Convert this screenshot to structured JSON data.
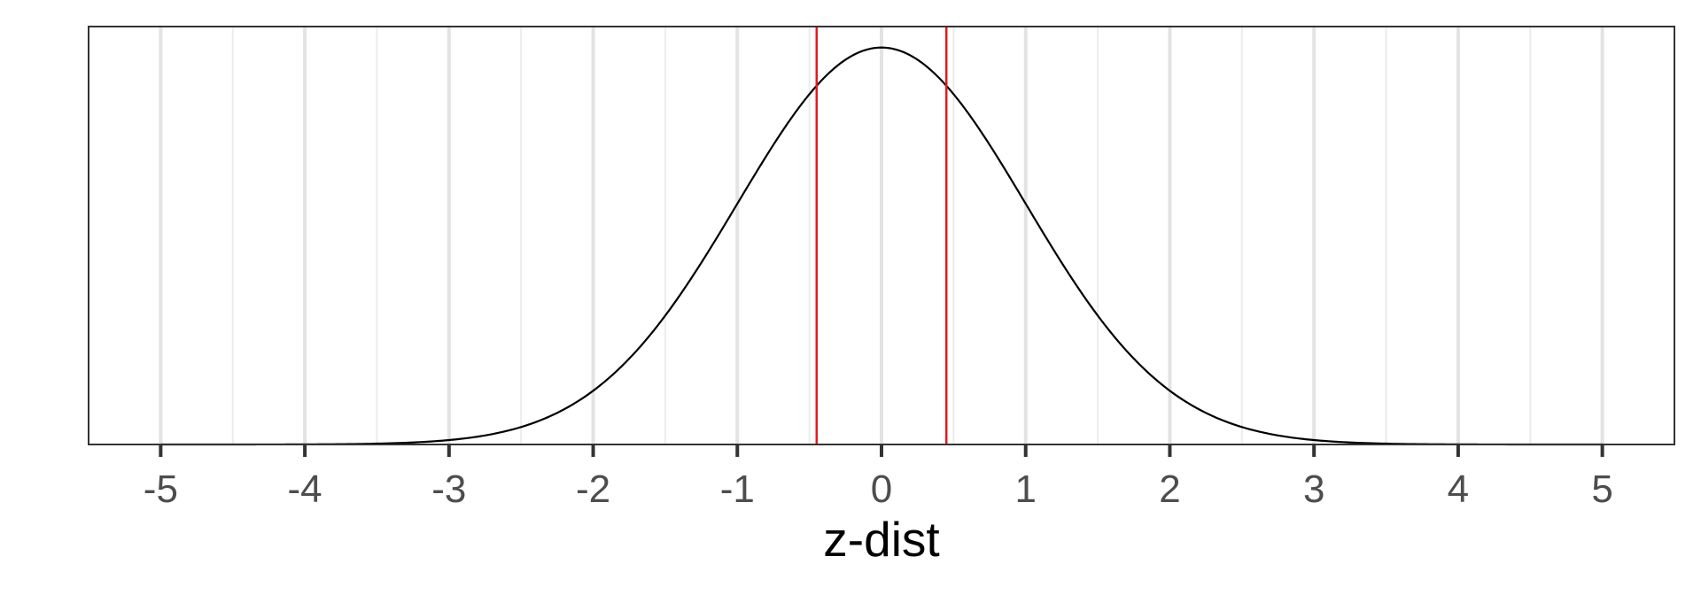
{
  "chart_data": {
    "type": "line",
    "title": "",
    "xlabel": "z-dist",
    "ylabel": "",
    "xlim": [
      -5.5,
      5.5
    ],
    "ylim": [
      0,
      0.42
    ],
    "x_ticks": [
      -5,
      -4,
      -3,
      -2,
      -1,
      0,
      1,
      2,
      3,
      4,
      5
    ],
    "x_tick_labels": [
      "-5",
      "-4",
      "-3",
      "-2",
      "-1",
      "0",
      "1",
      "2",
      "3",
      "4",
      "5"
    ],
    "x_minor_grid": [
      -4.5,
      -3.5,
      -2.5,
      -1.5,
      -0.5,
      0.5,
      1.5,
      2.5,
      3.5,
      4.5
    ],
    "y_ticks_shown": false,
    "grid": "vertical-only",
    "series": [
      {
        "function": "standard-normal-density",
        "x": [
          -5,
          -4,
          -3,
          -2.5,
          -2,
          -1.5,
          -1,
          -0.5,
          0,
          0.5,
          1,
          1.5,
          2,
          2.5,
          3,
          4,
          5
        ],
        "y": [
          1.5e-06,
          0.000134,
          0.00443,
          0.0175,
          0.054,
          0.1295,
          0.242,
          0.352,
          0.399,
          0.352,
          0.242,
          0.1295,
          0.054,
          0.0175,
          0.00443,
          0.000134,
          1.5e-06
        ],
        "color": "#000000"
      }
    ],
    "reference_lines": [
      {
        "x": -0.45,
        "color": "#e41a1c"
      },
      {
        "x": 0.45,
        "color": "#e41a1c"
      }
    ],
    "colors": {
      "curve": "#000000",
      "reference": "#e41a1c",
      "panel_border": "#333333",
      "major_grid": "#e3e3e3",
      "minor_grid": "#ececec",
      "tick_label": "#4d4d4d"
    }
  }
}
